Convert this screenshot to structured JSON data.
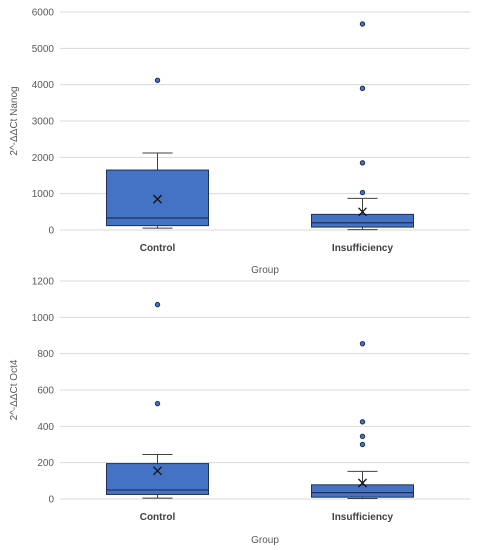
{
  "chart_data": [
    {
      "type": "box",
      "title": "",
      "xlabel": "Group",
      "ylabel": "2^-ΔΔCt Nanog",
      "ylim": [
        0,
        6000
      ],
      "yticks": [
        0,
        1000,
        2000,
        3000,
        4000,
        5000,
        6000
      ],
      "tick_labels": [
        "0",
        "1000",
        "2000",
        "3000",
        "4000",
        "5000",
        "6000"
      ],
      "grid": true,
      "legend": "none",
      "box_color": "#4472C4",
      "categories": [
        "Control",
        "Insufficiency"
      ],
      "boxes": [
        {
          "name": "Control",
          "min": 50,
          "q1": 120,
          "median": 330,
          "q3": 1650,
          "max": 2120,
          "mean": 850,
          "outliers": [
            4120
          ]
        },
        {
          "name": "Insufficiency",
          "min": 10,
          "q1": 80,
          "median": 200,
          "q3": 430,
          "max": 870,
          "mean": 500,
          "outliers": [
            1030,
            1850,
            3900,
            5670
          ]
        }
      ]
    },
    {
      "type": "box",
      "title": "",
      "xlabel": "Group",
      "ylabel": "2^-ΔΔCt Oct4",
      "ylim": [
        0,
        1200
      ],
      "yticks": [
        0,
        200,
        400,
        600,
        800,
        1000,
        1200
      ],
      "tick_labels": [
        "0",
        "200",
        "400",
        "600",
        "800",
        "1000",
        "1200"
      ],
      "grid": true,
      "legend": "none",
      "box_color": "#4472C4",
      "categories": [
        "Control",
        "Insufficiency"
      ],
      "boxes": [
        {
          "name": "Control",
          "min": 5,
          "q1": 25,
          "median": 50,
          "q3": 195,
          "max": 245,
          "mean": 155,
          "outliers": [
            525,
            1070
          ]
        },
        {
          "name": "Insufficiency",
          "min": 3,
          "q1": 10,
          "median": 35,
          "q3": 78,
          "max": 152,
          "mean": 88,
          "outliers": [
            300,
            345,
            425,
            855
          ]
        }
      ]
    }
  ]
}
